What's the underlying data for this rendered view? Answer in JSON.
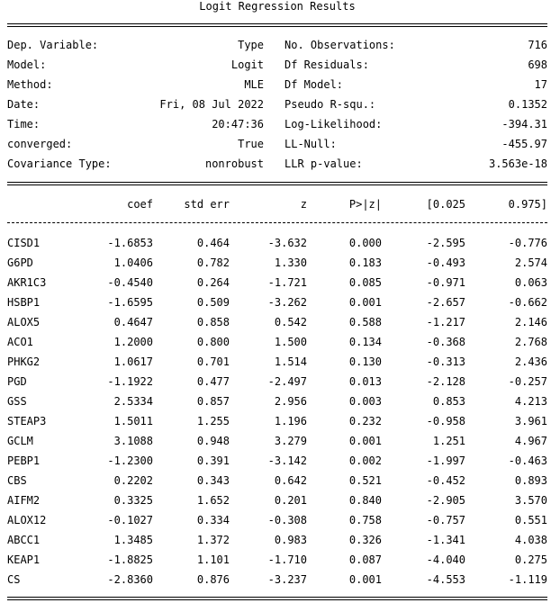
{
  "title": "Logit Regression Results",
  "summary": [
    {
      "label_left": "Dep. Variable:",
      "value_left": "Type",
      "label_right": "No. Observations:",
      "value_right": "716"
    },
    {
      "label_left": "Model:",
      "value_left": "Logit",
      "label_right": "Df Residuals:",
      "value_right": "698"
    },
    {
      "label_left": "Method:",
      "value_left": "MLE",
      "label_right": "Df Model:",
      "value_right": "17"
    },
    {
      "label_left": "Date:",
      "value_left": "Fri, 08 Jul 2022",
      "label_right": "Pseudo R-squ.:",
      "value_right": "0.1352"
    },
    {
      "label_left": "Time:",
      "value_left": "20:47:36",
      "label_right": "Log-Likelihood:",
      "value_right": "-394.31"
    },
    {
      "label_left": "converged:",
      "value_left": "True",
      "label_right": "LL-Null:",
      "value_right": "-455.97"
    },
    {
      "label_left": "Covariance Type:",
      "value_left": "nonrobust",
      "label_right": "LLR p-value:",
      "value_right": "3.563e-18"
    }
  ],
  "columns": [
    "",
    "coef",
    "std err",
    "z",
    "P>|z|",
    "[0.025",
    "0.975]"
  ],
  "rows": [
    [
      "CISD1",
      "-1.6853",
      "0.464",
      "-3.632",
      "0.000",
      "-2.595",
      "-0.776"
    ],
    [
      "G6PD",
      "1.0406",
      "0.782",
      "1.330",
      "0.183",
      "-0.493",
      "2.574"
    ],
    [
      "AKR1C3",
      "-0.4540",
      "0.264",
      "-1.721",
      "0.085",
      "-0.971",
      "0.063"
    ],
    [
      "HSBP1",
      "-1.6595",
      "0.509",
      "-3.262",
      "0.001",
      "-2.657",
      "-0.662"
    ],
    [
      "ALOX5",
      "0.4647",
      "0.858",
      "0.542",
      "0.588",
      "-1.217",
      "2.146"
    ],
    [
      "ACO1",
      "1.2000",
      "0.800",
      "1.500",
      "0.134",
      "-0.368",
      "2.768"
    ],
    [
      "PHKG2",
      "1.0617",
      "0.701",
      "1.514",
      "0.130",
      "-0.313",
      "2.436"
    ],
    [
      "PGD",
      "-1.1922",
      "0.477",
      "-2.497",
      "0.013",
      "-2.128",
      "-0.257"
    ],
    [
      "GSS",
      "2.5334",
      "0.857",
      "2.956",
      "0.003",
      "0.853",
      "4.213"
    ],
    [
      "STEAP3",
      "1.5011",
      "1.255",
      "1.196",
      "0.232",
      "-0.958",
      "3.961"
    ],
    [
      "GCLM",
      "3.1088",
      "0.948",
      "3.279",
      "0.001",
      "1.251",
      "4.967"
    ],
    [
      "PEBP1",
      "-1.2300",
      "0.391",
      "-3.142",
      "0.002",
      "-1.997",
      "-0.463"
    ],
    [
      "CBS",
      "0.2202",
      "0.343",
      "0.642",
      "0.521",
      "-0.452",
      "0.893"
    ],
    [
      "AIFM2",
      "0.3325",
      "1.652",
      "0.201",
      "0.840",
      "-2.905",
      "3.570"
    ],
    [
      "ALOX12",
      "-0.1027",
      "0.334",
      "-0.308",
      "0.758",
      "-0.757",
      "0.551"
    ],
    [
      "ABCC1",
      "1.3485",
      "1.372",
      "0.983",
      "0.326",
      "-1.341",
      "4.038"
    ],
    [
      "KEAP1",
      "-1.8825",
      "1.101",
      "-1.710",
      "0.087",
      "-4.040",
      "0.275"
    ],
    [
      "CS",
      "-2.8360",
      "0.876",
      "-3.237",
      "0.001",
      "-4.553",
      "-1.119"
    ]
  ]
}
